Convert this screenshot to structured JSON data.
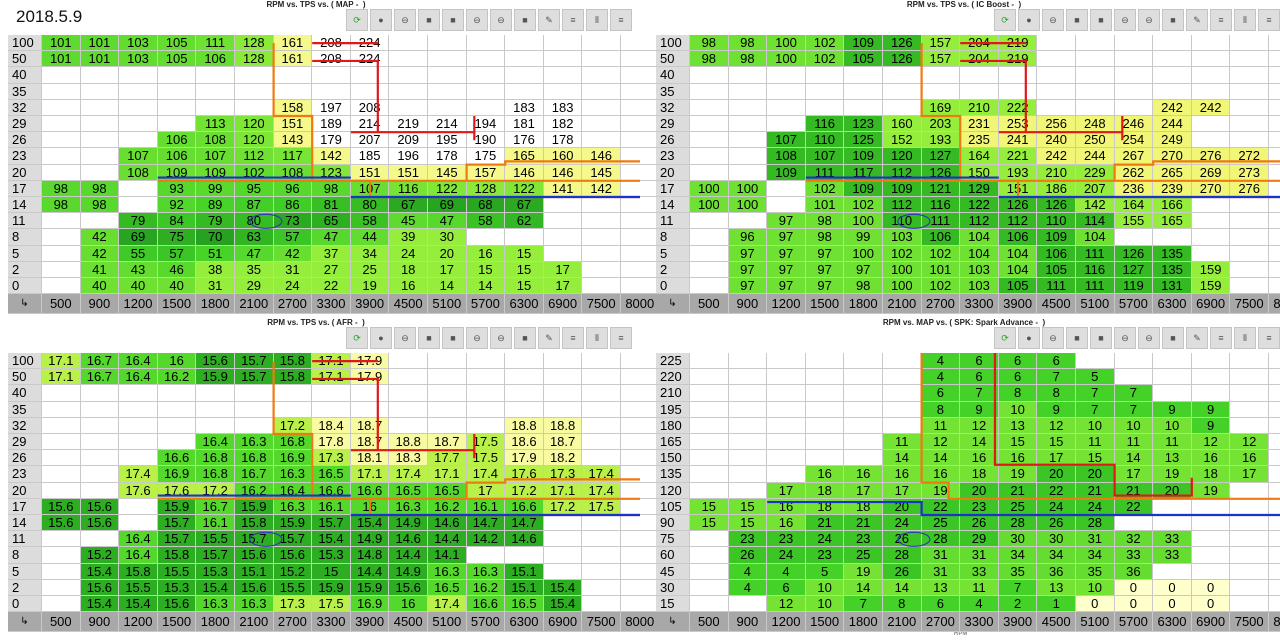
{
  "date": "2018.5.9",
  "panels": [
    {
      "title": "RPM vs. TPS vs. ( MAP -  )",
      "y_axis": "TPS",
      "x_axis": "",
      "rows": [
        "100",
        "50",
        "40",
        "35",
        "32",
        "29",
        "26",
        "23",
        "20",
        "17",
        "14",
        "11",
        "8",
        "5",
        "2",
        "0"
      ],
      "cols": [
        "500",
        "900",
        "1200",
        "1500",
        "1800",
        "2100",
        "2700",
        "3300",
        "3900",
        "4500",
        "5100",
        "5700",
        "6300",
        "6900",
        "7500",
        "8000"
      ],
      "cells": [
        [
          101,
          101,
          103,
          105,
          111,
          128,
          161,
          208,
          224,
          "",
          "",
          "",
          "",
          "",
          "",
          ""
        ],
        [
          101,
          101,
          103,
          105,
          106,
          128,
          161,
          208,
          224,
          "",
          "",
          "",
          "",
          "",
          "",
          ""
        ],
        [
          "",
          "",
          "",
          "",
          "",
          "",
          "",
          "",
          "",
          "",
          "",
          "",
          "",
          "",
          "",
          ""
        ],
        [
          "",
          "",
          "",
          "",
          "",
          "",
          "",
          "",
          "",
          "",
          "",
          "",
          "",
          "",
          "",
          ""
        ],
        [
          "",
          "",
          "",
          "",
          "",
          "",
          158,
          197,
          208,
          "",
          "",
          "",
          183,
          183,
          "",
          ""
        ],
        [
          "",
          "",
          "",
          "",
          113,
          120,
          151,
          189,
          214,
          219,
          214,
          194,
          181,
          182,
          "",
          ""
        ],
        [
          "",
          "",
          "",
          106,
          108,
          120,
          143,
          179,
          207,
          209,
          195,
          190,
          176,
          178,
          "",
          ""
        ],
        [
          "",
          "",
          107,
          106,
          107,
          112,
          117,
          142,
          185,
          196,
          178,
          175,
          165,
          160,
          146,
          ""
        ],
        [
          "",
          "",
          108,
          109,
          109,
          102,
          108,
          123,
          151,
          151,
          145,
          157,
          146,
          146,
          145,
          ""
        ],
        [
          98,
          98,
          "",
          93,
          99,
          95,
          96,
          98,
          107,
          116,
          122,
          128,
          122,
          141,
          142,
          ""
        ],
        [
          98,
          98,
          "",
          92,
          89,
          87,
          86,
          81,
          80,
          67,
          69,
          68,
          67,
          "",
          "",
          ""
        ],
        [
          "",
          "",
          79,
          84,
          79,
          80,
          73,
          65,
          58,
          45,
          47,
          58,
          62,
          "",
          "",
          ""
        ],
        [
          "",
          42,
          69,
          75,
          70,
          63,
          57,
          47,
          44,
          39,
          30,
          "",
          "",
          "",
          "",
          ""
        ],
        [
          "",
          42,
          55,
          57,
          51,
          47,
          42,
          37,
          34,
          24,
          20,
          16,
          15,
          "",
          "",
          ""
        ],
        [
          "",
          41,
          43,
          46,
          38,
          35,
          31,
          27,
          25,
          18,
          17,
          15,
          15,
          17,
          "",
          ""
        ],
        [
          "",
          40,
          40,
          40,
          31,
          29,
          24,
          22,
          19,
          16,
          14,
          14,
          15,
          17,
          "",
          ""
        ]
      ]
    },
    {
      "title": "RPM vs. TPS vs. ( IC Boost -  )",
      "y_axis": "TPS",
      "x_axis": "",
      "rows": [
        "100",
        "50",
        "40",
        "35",
        "32",
        "29",
        "26",
        "23",
        "20",
        "17",
        "14",
        "11",
        "8",
        "5",
        "2",
        "0"
      ],
      "cols": [
        "500",
        "900",
        "1200",
        "1500",
        "1800",
        "2100",
        "2700",
        "3300",
        "3900",
        "4500",
        "5100",
        "5700",
        "6300",
        "6900",
        "7500",
        "8000"
      ],
      "cells": [
        [
          98,
          98,
          100,
          102,
          109,
          126,
          157,
          204,
          219,
          "",
          "",
          "",
          "",
          "",
          "",
          ""
        ],
        [
          98,
          98,
          100,
          102,
          105,
          126,
          157,
          204,
          219,
          "",
          "",
          "",
          "",
          "",
          "",
          ""
        ],
        [
          "",
          "",
          "",
          "",
          "",
          "",
          "",
          "",
          "",
          "",
          "",
          "",
          "",
          "",
          "",
          ""
        ],
        [
          "",
          "",
          "",
          "",
          "",
          "",
          "",
          "",
          "",
          "",
          "",
          "",
          "",
          "",
          "",
          ""
        ],
        [
          "",
          "",
          "",
          "",
          "",
          "",
          169,
          210,
          222,
          "",
          "",
          "",
          242,
          242,
          "",
          ""
        ],
        [
          "",
          "",
          "",
          116,
          123,
          160,
          203,
          231,
          253,
          256,
          248,
          246,
          244,
          "",
          "",
          ""
        ],
        [
          "",
          "",
          107,
          110,
          125,
          152,
          193,
          235,
          241,
          240,
          250,
          254,
          249,
          "",
          "",
          ""
        ],
        [
          "",
          "",
          108,
          107,
          109,
          120,
          127,
          164,
          221,
          242,
          244,
          267,
          270,
          276,
          272,
          ""
        ],
        [
          "",
          "",
          109,
          111,
          117,
          112,
          126,
          150,
          193,
          210,
          229,
          262,
          265,
          269,
          273,
          ""
        ],
        [
          100,
          100,
          "",
          102,
          109,
          109,
          121,
          129,
          151,
          186,
          207,
          236,
          239,
          270,
          276,
          ""
        ],
        [
          100,
          100,
          "",
          101,
          102,
          112,
          116,
          122,
          126,
          126,
          142,
          164,
          166,
          "",
          "",
          ""
        ],
        [
          "",
          "",
          97,
          98,
          100,
          110,
          111,
          112,
          112,
          110,
          114,
          155,
          165,
          "",
          "",
          ""
        ],
        [
          "",
          96,
          97,
          98,
          99,
          103,
          106,
          104,
          106,
          109,
          104,
          "",
          "",
          "",
          "",
          ""
        ],
        [
          "",
          97,
          97,
          97,
          100,
          102,
          102,
          104,
          104,
          106,
          111,
          126,
          135,
          "",
          "",
          ""
        ],
        [
          "",
          97,
          97,
          97,
          97,
          100,
          101,
          103,
          104,
          105,
          116,
          127,
          135,
          159,
          "",
          ""
        ],
        [
          "",
          97,
          97,
          97,
          98,
          100,
          102,
          103,
          105,
          111,
          111,
          119,
          131,
          159,
          "",
          ""
        ]
      ]
    },
    {
      "title": "RPM vs. TPS vs. ( AFR -  )",
      "y_axis": "TPS",
      "x_axis": "",
      "rows": [
        "100",
        "50",
        "40",
        "35",
        "32",
        "29",
        "26",
        "23",
        "20",
        "17",
        "14",
        "11",
        "8",
        "5",
        "2",
        "0"
      ],
      "cols": [
        "500",
        "900",
        "1200",
        "1500",
        "1800",
        "2100",
        "2700",
        "3300",
        "3900",
        "4500",
        "5100",
        "5700",
        "6300",
        "6900",
        "7500",
        "8000"
      ],
      "cells": [
        [
          17.1,
          16.7,
          16.4,
          16.0,
          15.6,
          15.7,
          15.8,
          17.1,
          17.9,
          "",
          "",
          "",
          "",
          "",
          "",
          ""
        ],
        [
          17.1,
          16.7,
          16.4,
          16.2,
          15.9,
          15.7,
          15.8,
          17.1,
          17.9,
          "",
          "",
          "",
          "",
          "",
          "",
          ""
        ],
        [
          "",
          "",
          "",
          "",
          "",
          "",
          "",
          "",
          "",
          "",
          "",
          "",
          "",
          "",
          "",
          ""
        ],
        [
          "",
          "",
          "",
          "",
          "",
          "",
          "",
          "",
          "",
          "",
          "",
          "",
          "",
          "",
          "",
          ""
        ],
        [
          "",
          "",
          "",
          "",
          "",
          "",
          17.2,
          18.4,
          18.7,
          "",
          "",
          "",
          18.8,
          18.8,
          "",
          ""
        ],
        [
          "",
          "",
          "",
          "",
          16.4,
          16.3,
          16.8,
          17.8,
          18.7,
          18.8,
          18.7,
          17.5,
          18.6,
          18.7,
          "",
          ""
        ],
        [
          "",
          "",
          "",
          16.6,
          16.8,
          16.8,
          16.9,
          17.3,
          18.1,
          18.3,
          17.7,
          17.5,
          17.9,
          18.2,
          "",
          ""
        ],
        [
          "",
          "",
          17.4,
          16.9,
          16.8,
          16.7,
          16.3,
          16.5,
          17.1,
          17.4,
          17.1,
          17.4,
          17.6,
          17.3,
          17.4,
          ""
        ],
        [
          "",
          "",
          17.6,
          17.6,
          17.2,
          16.2,
          16.4,
          16.6,
          16.6,
          16.5,
          16.5,
          17.0,
          17.2,
          17.1,
          17.4,
          ""
        ],
        [
          15.6,
          15.6,
          "",
          15.9,
          16.7,
          15.9,
          16.3,
          16.1,
          16.0,
          16.3,
          16.2,
          16.1,
          16.6,
          17.2,
          17.5,
          ""
        ],
        [
          15.6,
          15.6,
          "",
          15.7,
          16.1,
          15.8,
          15.9,
          15.7,
          15.4,
          14.9,
          14.6,
          14.7,
          14.7,
          "",
          "",
          ""
        ],
        [
          "",
          "",
          16.4,
          15.7,
          15.5,
          15.7,
          15.7,
          15.4,
          14.9,
          14.6,
          14.4,
          14.2,
          14.6,
          "",
          "",
          ""
        ],
        [
          "",
          15.2,
          16.4,
          15.8,
          15.7,
          15.6,
          15.6,
          15.3,
          14.8,
          14.4,
          14.1,
          "",
          "",
          "",
          "",
          ""
        ],
        [
          "",
          15.4,
          15.8,
          15.5,
          15.3,
          15.1,
          15.2,
          15.0,
          14.4,
          14.9,
          16.3,
          16.3,
          15.1,
          "",
          "",
          ""
        ],
        [
          "",
          15.6,
          15.5,
          15.3,
          15.4,
          15.6,
          15.5,
          15.9,
          15.9,
          15.6,
          16.5,
          16.2,
          15.1,
          15.4,
          "",
          ""
        ],
        [
          "",
          15.4,
          15.4,
          15.6,
          16.3,
          16.3,
          17.3,
          17.5,
          16.9,
          16.0,
          17.4,
          16.6,
          16.5,
          15.4,
          "",
          ""
        ]
      ]
    },
    {
      "title": "RPM vs. MAP vs. ( SPK: Spark Advance -  )",
      "y_axis": "MAP",
      "x_axis": "RPM",
      "rows": [
        "225",
        "220",
        "210",
        "195",
        "180",
        "165",
        "150",
        "135",
        "120",
        "105",
        "90",
        "75",
        "60",
        "45",
        "30",
        "15"
      ],
      "cols": [
        "500",
        "900",
        "1200",
        "1500",
        "1800",
        "2100",
        "2700",
        "3300",
        "3900",
        "4500",
        "5100",
        "5700",
        "6300",
        "6900",
        "7500",
        "8000"
      ],
      "cells": [
        [
          "",
          "",
          "",
          "",
          "",
          "",
          4,
          6,
          6,
          6,
          "",
          "",
          "",
          "",
          "",
          ""
        ],
        [
          "",
          "",
          "",
          "",
          "",
          "",
          4,
          6,
          6,
          7,
          5,
          "",
          "",
          "",
          "",
          ""
        ],
        [
          "",
          "",
          "",
          "",
          "",
          "",
          6,
          7,
          8,
          8,
          7,
          7,
          "",
          "",
          "",
          ""
        ],
        [
          "",
          "",
          "",
          "",
          "",
          "",
          8,
          9,
          10,
          9,
          7,
          7,
          9,
          9,
          "",
          ""
        ],
        [
          "",
          "",
          "",
          "",
          "",
          "",
          11,
          12,
          13,
          12,
          10,
          10,
          10,
          9,
          "",
          ""
        ],
        [
          "",
          "",
          "",
          "",
          "",
          11,
          12,
          14,
          15,
          15,
          11,
          11,
          11,
          12,
          12,
          ""
        ],
        [
          "",
          "",
          "",
          "",
          "",
          14,
          14,
          16,
          16,
          17,
          15,
          14,
          13,
          16,
          16,
          ""
        ],
        [
          "",
          "",
          "",
          16,
          16,
          16,
          16,
          18,
          19,
          20,
          20,
          17,
          19,
          18,
          17,
          ""
        ],
        [
          "",
          "",
          17,
          18,
          17,
          17,
          19,
          20,
          21,
          22,
          21,
          21,
          20,
          19,
          "",
          ""
        ],
        [
          15,
          15,
          16,
          18,
          18,
          20,
          22,
          23,
          25,
          24,
          24,
          22,
          "",
          "",
          "",
          ""
        ],
        [
          15,
          15,
          16,
          21,
          21,
          24,
          25,
          26,
          28,
          26,
          28,
          "",
          "",
          "",
          "",
          ""
        ],
        [
          "",
          23,
          23,
          24,
          23,
          26,
          28,
          29,
          30,
          30,
          31,
          32,
          33,
          "",
          "",
          ""
        ],
        [
          "",
          26,
          24,
          23,
          25,
          28,
          31,
          31,
          34,
          34,
          34,
          33,
          33,
          "",
          "",
          ""
        ],
        [
          "",
          4,
          4,
          5,
          19,
          26,
          31,
          33,
          35,
          36,
          35,
          36,
          "",
          "",
          "",
          ""
        ],
        [
          "",
          4,
          6,
          10,
          14,
          14,
          13,
          11,
          7,
          13,
          10,
          0,
          0,
          0,
          "",
          ""
        ],
        [
          "",
          "",
          12,
          10,
          7,
          8,
          6,
          4,
          2,
          1,
          0,
          0,
          0,
          0,
          "",
          ""
        ]
      ]
    }
  ],
  "toolbar_icons": [
    "refresh-icon",
    "circle-icon",
    "minus-circle-icon",
    "square-icon",
    "square-icon",
    "minus-circle-icon",
    "minus-circle-icon",
    "square-icon",
    "pencil-icon",
    "list-icon",
    "columns-icon",
    "list-icon"
  ],
  "colors": {
    "header_row": "#dcdcdc",
    "header_col": "#a8a8a8",
    "red_line": "#e01818",
    "orange_line": "#f07a12",
    "blue_line": "#1a33c8",
    "oval": "#2a3fa8"
  }
}
